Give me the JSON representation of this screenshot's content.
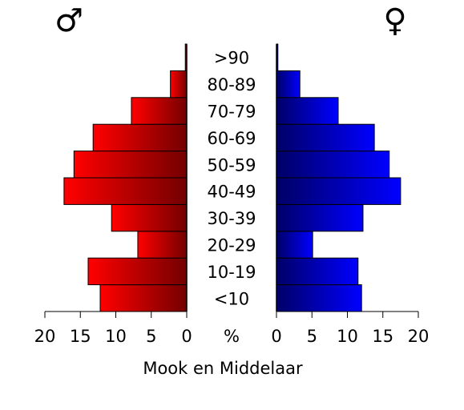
{
  "chart_data": {
    "type": "pyramid",
    "xlabel": "Mook en Middelaar",
    "center_label": "%",
    "categories": [
      "<10",
      "10-19",
      "20-29",
      "30-39",
      "40-49",
      "50-59",
      "60-69",
      "70-79",
      "80-89",
      ">90"
    ],
    "series": [
      {
        "name": "♂",
        "color": "#ff0000",
        "values": [
          12.2,
          13.9,
          6.9,
          10.6,
          17.3,
          15.9,
          13.2,
          7.8,
          2.3,
          0.2
        ]
      },
      {
        "name": "♀",
        "color": "#0000ff",
        "values": [
          12.0,
          11.5,
          5.1,
          12.2,
          17.5,
          15.9,
          13.8,
          8.7,
          3.3,
          0.2
        ]
      }
    ],
    "xlim": [
      0,
      20
    ],
    "xticks": [
      0,
      5,
      10,
      15,
      20
    ]
  }
}
